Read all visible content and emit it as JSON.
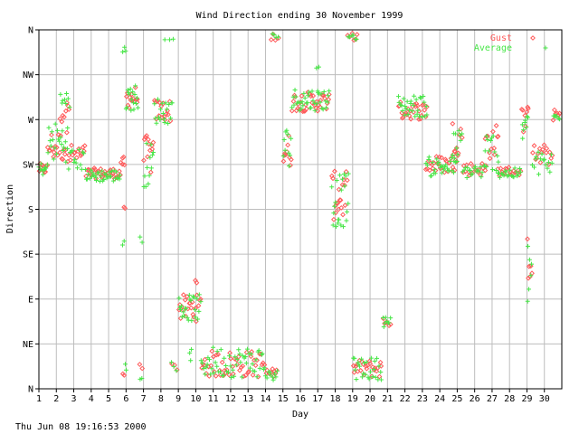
{
  "chart_data": {
    "type": "scatter",
    "title": "Wind Direction ending 30 November 1999",
    "xlabel": "Day",
    "ylabel": "Direction",
    "xlim": [
      1,
      31
    ],
    "ylim": [
      0,
      8
    ],
    "x_ticks": [
      1,
      2,
      3,
      4,
      5,
      6,
      7,
      8,
      9,
      10,
      11,
      12,
      13,
      14,
      15,
      16,
      17,
      18,
      19,
      20,
      21,
      22,
      23,
      24,
      25,
      26,
      27,
      28,
      29,
      30
    ],
    "x_tick_labels": [
      "1",
      "2",
      "3",
      "4",
      "5",
      "6",
      "7",
      "8",
      "9",
      "10",
      "11",
      "12",
      "13",
      "14",
      "15",
      "16",
      "17",
      "18",
      "19",
      "20",
      "21",
      "22",
      "23",
      "24",
      "25",
      "26",
      "27",
      "28",
      "29",
      "30"
    ],
    "y_ticks": [
      0,
      1,
      2,
      3,
      4,
      5,
      6,
      7,
      8
    ],
    "y_tick_labels": [
      "N",
      "NE",
      "E",
      "SE",
      "S",
      "SW",
      "W",
      "NW",
      "N"
    ],
    "grid": true,
    "legend_position": "top-right",
    "series": [
      {
        "name": "Gust",
        "marker": "diamond",
        "color": "#ff5a5a",
        "segments": [
          {
            "x0": 1.0,
            "x1": 1.5,
            "y": 4.9,
            "spread": 0.12,
            "n": 10
          },
          {
            "x0": 1.5,
            "x1": 2.7,
            "y": 5.4,
            "spread": 0.35,
            "n": 20
          },
          {
            "x0": 2.2,
            "x1": 2.8,
            "y": 6.2,
            "spread": 0.25,
            "n": 8
          },
          {
            "x0": 2.7,
            "x1": 3.7,
            "y": 5.2,
            "spread": 0.25,
            "n": 14
          },
          {
            "x0": 3.7,
            "x1": 5.7,
            "y": 4.8,
            "spread": 0.12,
            "n": 32
          },
          {
            "x0": 5.7,
            "x1": 5.95,
            "y": 5.05,
            "spread": 0.12,
            "n": 5
          },
          {
            "x0": 5.85,
            "x1": 6.0,
            "y": 4.0,
            "spread": 0.05,
            "n": 2
          },
          {
            "x0": 5.8,
            "x1": 5.95,
            "y": 0.3,
            "spread": 0.05,
            "n": 2
          },
          {
            "x0": 6.0,
            "x1": 6.7,
            "y": 6.5,
            "spread": 0.25,
            "n": 14
          },
          {
            "x0": 6.75,
            "x1": 6.95,
            "y": 0.5,
            "spread": 0.05,
            "n": 2
          },
          {
            "x0": 7.0,
            "x1": 7.6,
            "y": 5.2,
            "spread": 0.45,
            "n": 12
          },
          {
            "x0": 7.6,
            "x1": 8.6,
            "y": 6.2,
            "spread": 0.25,
            "n": 16
          },
          {
            "x0": 8.6,
            "x1": 9.0,
            "y": 0.5,
            "spread": 0.1,
            "n": 3
          },
          {
            "x0": 9.0,
            "x1": 10.3,
            "y": 1.8,
            "spread": 0.3,
            "n": 22
          },
          {
            "x0": 9.9,
            "x1": 10.1,
            "y": 2.4,
            "spread": 0.05,
            "n": 2
          },
          {
            "x0": 10.3,
            "x1": 14.0,
            "y": 0.55,
            "spread": 0.3,
            "n": 50
          },
          {
            "x0": 14.0,
            "x1": 14.7,
            "y": 0.35,
            "spread": 0.1,
            "n": 10
          },
          {
            "x0": 14.3,
            "x1": 14.8,
            "y": 7.85,
            "spread": 0.08,
            "n": 4
          },
          {
            "x0": 15.0,
            "x1": 15.5,
            "y": 5.3,
            "spread": 0.4,
            "n": 10
          },
          {
            "x0": 15.5,
            "x1": 17.7,
            "y": 6.4,
            "spread": 0.22,
            "n": 36
          },
          {
            "x0": 17.8,
            "x1": 18.7,
            "y": 4.3,
            "spread": 0.55,
            "n": 20
          },
          {
            "x0": 18.7,
            "x1": 19.3,
            "y": 7.85,
            "spread": 0.08,
            "n": 6
          },
          {
            "x0": 19.0,
            "x1": 20.7,
            "y": 0.45,
            "spread": 0.2,
            "n": 24
          },
          {
            "x0": 20.7,
            "x1": 21.2,
            "y": 1.5,
            "spread": 0.12,
            "n": 6
          },
          {
            "x0": 21.6,
            "x1": 23.3,
            "y": 6.2,
            "spread": 0.2,
            "n": 28
          },
          {
            "x0": 23.2,
            "x1": 25.0,
            "y": 5.0,
            "spread": 0.2,
            "n": 28
          },
          {
            "x0": 24.7,
            "x1": 25.3,
            "y": 5.6,
            "spread": 0.4,
            "n": 10
          },
          {
            "x0": 25.3,
            "x1": 26.7,
            "y": 4.9,
            "spread": 0.15,
            "n": 18
          },
          {
            "x0": 26.6,
            "x1": 27.4,
            "y": 5.5,
            "spread": 0.4,
            "n": 12
          },
          {
            "x0": 27.3,
            "x1": 28.7,
            "y": 4.85,
            "spread": 0.1,
            "n": 18
          },
          {
            "x0": 28.7,
            "x1": 29.1,
            "y": 6.0,
            "spread": 0.3,
            "n": 8
          },
          {
            "x0": 29.0,
            "x1": 29.3,
            "y": 3.0,
            "spread": 0.6,
            "n": 6
          },
          {
            "x0": 29.3,
            "x1": 30.5,
            "y": 5.2,
            "spread": 0.25,
            "n": 16
          },
          {
            "x0": 30.5,
            "x1": 30.9,
            "y": 6.1,
            "spread": 0.12,
            "n": 6
          }
        ]
      },
      {
        "name": "Average",
        "marker": "plus",
        "color": "#46e646",
        "segments": [
          {
            "x0": 1.0,
            "x1": 1.5,
            "y": 4.9,
            "spread": 0.14,
            "n": 10
          },
          {
            "x0": 1.5,
            "x1": 2.7,
            "y": 5.5,
            "spread": 0.45,
            "n": 22
          },
          {
            "x0": 2.2,
            "x1": 2.8,
            "y": 6.4,
            "spread": 0.25,
            "n": 8
          },
          {
            "x0": 2.7,
            "x1": 3.7,
            "y": 5.1,
            "spread": 0.25,
            "n": 14
          },
          {
            "x0": 3.7,
            "x1": 5.7,
            "y": 4.75,
            "spread": 0.14,
            "n": 34
          },
          {
            "x0": 5.8,
            "x1": 6.0,
            "y": 7.6,
            "spread": 0.25,
            "n": 3
          },
          {
            "x0": 5.8,
            "x1": 5.95,
            "y": 3.2,
            "spread": 0.1,
            "n": 2
          },
          {
            "x0": 5.9,
            "x1": 6.05,
            "y": 0.5,
            "spread": 0.1,
            "n": 2
          },
          {
            "x0": 6.0,
            "x1": 6.7,
            "y": 6.5,
            "spread": 0.3,
            "n": 16
          },
          {
            "x0": 6.8,
            "x1": 6.95,
            "y": 0.2,
            "spread": 0.1,
            "n": 2
          },
          {
            "x0": 6.8,
            "x1": 6.95,
            "y": 3.3,
            "spread": 0.1,
            "n": 2
          },
          {
            "x0": 7.0,
            "x1": 7.6,
            "y": 5.0,
            "spread": 0.5,
            "n": 12
          },
          {
            "x0": 7.6,
            "x1": 8.7,
            "y": 6.2,
            "spread": 0.3,
            "n": 18
          },
          {
            "x0": 8.2,
            "x1": 8.8,
            "y": 7.8,
            "spread": 0.02,
            "n": 3
          },
          {
            "x0": 8.6,
            "x1": 9.0,
            "y": 0.5,
            "spread": 0.1,
            "n": 3
          },
          {
            "x0": 9.0,
            "x1": 10.3,
            "y": 1.8,
            "spread": 0.3,
            "n": 24
          },
          {
            "x0": 9.6,
            "x1": 9.8,
            "y": 0.7,
            "spread": 0.2,
            "n": 3
          },
          {
            "x0": 10.3,
            "x1": 14.0,
            "y": 0.6,
            "spread": 0.35,
            "n": 56
          },
          {
            "x0": 14.0,
            "x1": 14.7,
            "y": 0.3,
            "spread": 0.12,
            "n": 10
          },
          {
            "x0": 14.3,
            "x1": 14.8,
            "y": 7.85,
            "spread": 0.1,
            "n": 4
          },
          {
            "x0": 15.0,
            "x1": 15.5,
            "y": 5.4,
            "spread": 0.45,
            "n": 10
          },
          {
            "x0": 15.5,
            "x1": 17.7,
            "y": 6.45,
            "spread": 0.25,
            "n": 38
          },
          {
            "x0": 16.9,
            "x1": 17.1,
            "y": 7.2,
            "spread": 0.1,
            "n": 2
          },
          {
            "x0": 17.8,
            "x1": 18.8,
            "y": 4.2,
            "spread": 0.6,
            "n": 22
          },
          {
            "x0": 18.7,
            "x1": 19.3,
            "y": 7.85,
            "spread": 0.08,
            "n": 6
          },
          {
            "x0": 19.0,
            "x1": 20.7,
            "y": 0.45,
            "spread": 0.25,
            "n": 26
          },
          {
            "x0": 20.7,
            "x1": 21.2,
            "y": 1.5,
            "spread": 0.12,
            "n": 8
          },
          {
            "x0": 21.6,
            "x1": 23.3,
            "y": 6.3,
            "spread": 0.25,
            "n": 30
          },
          {
            "x0": 23.2,
            "x1": 25.0,
            "y": 4.95,
            "spread": 0.22,
            "n": 30
          },
          {
            "x0": 24.7,
            "x1": 25.3,
            "y": 5.4,
            "spread": 0.4,
            "n": 10
          },
          {
            "x0": 25.3,
            "x1": 26.7,
            "y": 4.85,
            "spread": 0.16,
            "n": 20
          },
          {
            "x0": 26.6,
            "x1": 27.4,
            "y": 5.3,
            "spread": 0.45,
            "n": 12
          },
          {
            "x0": 27.3,
            "x1": 28.7,
            "y": 4.8,
            "spread": 0.12,
            "n": 20
          },
          {
            "x0": 28.7,
            "x1": 29.1,
            "y": 5.8,
            "spread": 0.35,
            "n": 8
          },
          {
            "x0": 29.0,
            "x1": 29.3,
            "y": 2.6,
            "spread": 0.8,
            "n": 6
          },
          {
            "x0": 29.3,
            "x1": 30.5,
            "y": 5.0,
            "spread": 0.3,
            "n": 16
          },
          {
            "x0": 30.5,
            "x1": 30.9,
            "y": 6.05,
            "spread": 0.12,
            "n": 6
          }
        ]
      }
    ]
  },
  "footer": {
    "timestamp": "Thu Jun 08 19:16:53 2000"
  }
}
